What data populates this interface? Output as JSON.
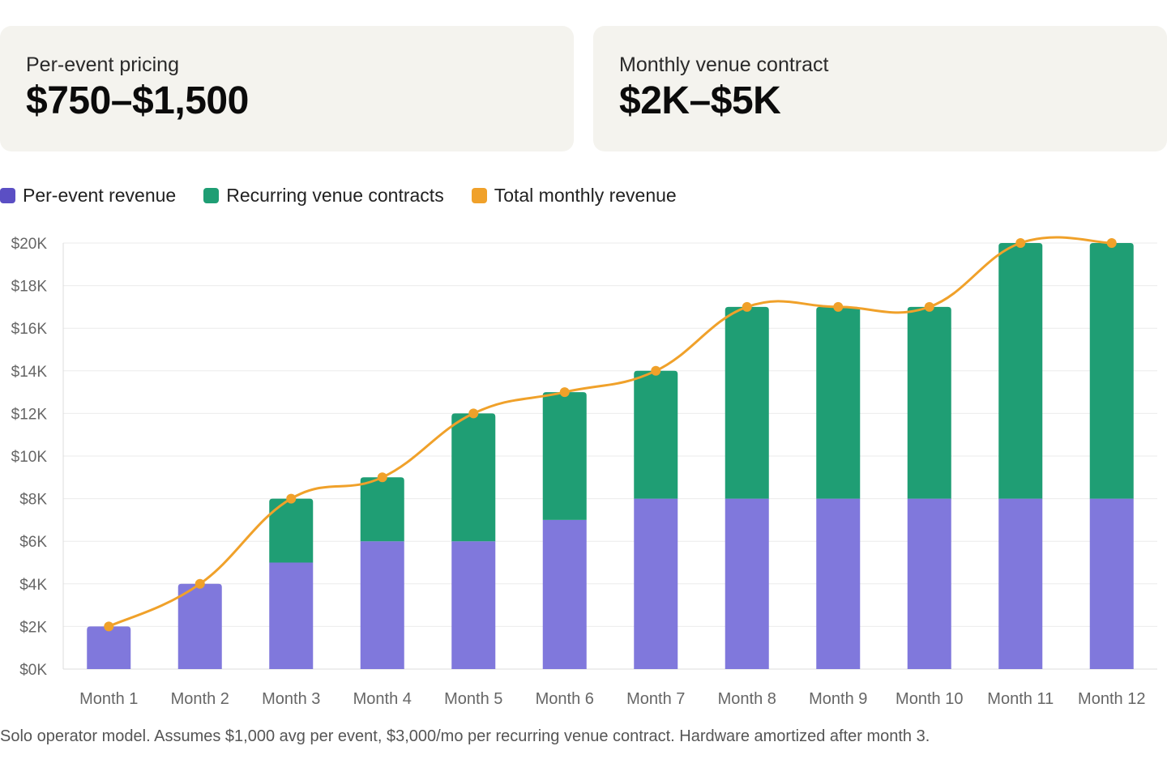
{
  "cards": [
    {
      "label": "Per-event pricing",
      "value": "$750–$1,500"
    },
    {
      "label": "Monthly venue contract",
      "value": "$2K–$5K"
    }
  ],
  "legend": [
    {
      "label": "Per-event revenue",
      "color": "#5b4fc4"
    },
    {
      "label": "Recurring venue contracts",
      "color": "#1f9e74"
    },
    {
      "label": "Total monthly revenue",
      "color": "#f0a12a"
    }
  ],
  "chart_data": {
    "type": "bar",
    "stacked": true,
    "categories": [
      "Month 1",
      "Month 2",
      "Month 3",
      "Month 4",
      "Month 5",
      "Month 6",
      "Month 7",
      "Month 8",
      "Month 9",
      "Month 10",
      "Month 11",
      "Month 12"
    ],
    "series": [
      {
        "name": "Per-event revenue",
        "type": "bar",
        "color": "#8078dc",
        "values": [
          2000,
          4000,
          5000,
          6000,
          6000,
          7000,
          8000,
          8000,
          8000,
          8000,
          8000,
          8000
        ]
      },
      {
        "name": "Recurring venue contracts",
        "type": "bar",
        "color": "#1f9e74",
        "values": [
          0,
          0,
          3000,
          3000,
          6000,
          6000,
          6000,
          9000,
          9000,
          9000,
          12000,
          12000
        ]
      },
      {
        "name": "Total monthly revenue",
        "type": "line",
        "color": "#f0a12a",
        "values": [
          2000,
          4000,
          8000,
          9000,
          12000,
          13000,
          14000,
          17000,
          17000,
          17000,
          20000,
          20000
        ]
      }
    ],
    "ylim": [
      0,
      20000
    ],
    "yticks": [
      0,
      2000,
      4000,
      6000,
      8000,
      10000,
      12000,
      14000,
      16000,
      18000,
      20000
    ],
    "ytick_labels": [
      "$0K",
      "$2K",
      "$4K",
      "$6K",
      "$8K",
      "$10K",
      "$12K",
      "$14K",
      "$16K",
      "$18K",
      "$20K"
    ],
    "grid": true
  },
  "footnote": "Solo operator model. Assumes $1,000 avg per event, $3,000/mo per recurring venue contract. Hardware amortized after month 3."
}
